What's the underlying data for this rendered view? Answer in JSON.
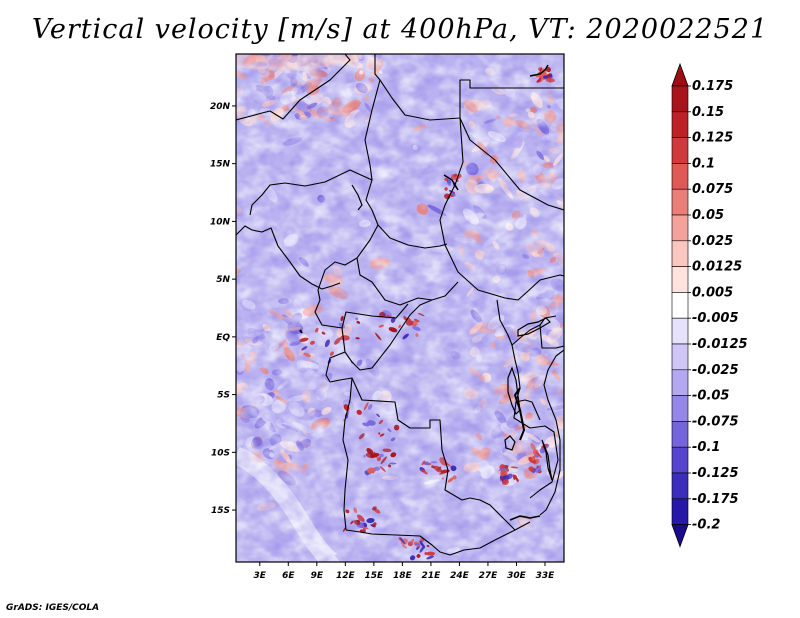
{
  "title": "Vertical velocity [m/s] at 400hPa, VT: 2020022521",
  "credit": "GrADS: IGES/COLA",
  "map": {
    "lon_labels": [
      "3E",
      "6E",
      "9E",
      "12E",
      "15E",
      "18E",
      "21E",
      "24E",
      "27E",
      "30E",
      "33E"
    ],
    "lat_labels": [
      "20N",
      "15N",
      "10N",
      "5N",
      "EQ",
      "5S",
      "10S",
      "15S"
    ],
    "lon_values": [
      3,
      6,
      9,
      12,
      15,
      18,
      21,
      24,
      27,
      30,
      33
    ],
    "lat_values": [
      20,
      15,
      10,
      5,
      0,
      -5,
      -10,
      -15
    ],
    "lon_range": [
      0.5,
      35
    ],
    "lat_range": [
      -19.5,
      24.5
    ],
    "seed": 7
  },
  "colorbar": {
    "labels": [
      "0.175",
      "0.15",
      "0.125",
      "0.1",
      "0.075",
      "0.05",
      "0.025",
      "0.0125",
      "0.005",
      "-0.005",
      "-0.0125",
      "-0.025",
      "-0.05",
      "-0.075",
      "-0.1",
      "-0.125",
      "-0.175",
      "-0.2"
    ],
    "top_color": "#9e0d14",
    "bottom_color": "#1a0a8c",
    "colors": [
      "#a8131c",
      "#be2028",
      "#d03a3c",
      "#df5a56",
      "#ea7f78",
      "#f3a39c",
      "#f9c6c0",
      "#fde2de",
      "#ffffff",
      "#e6e2fc",
      "#cfc6f6",
      "#b4a8f0",
      "#9487e8",
      "#7565dd",
      "#5644cf",
      "#3d2dbd",
      "#2818a8"
    ]
  }
}
